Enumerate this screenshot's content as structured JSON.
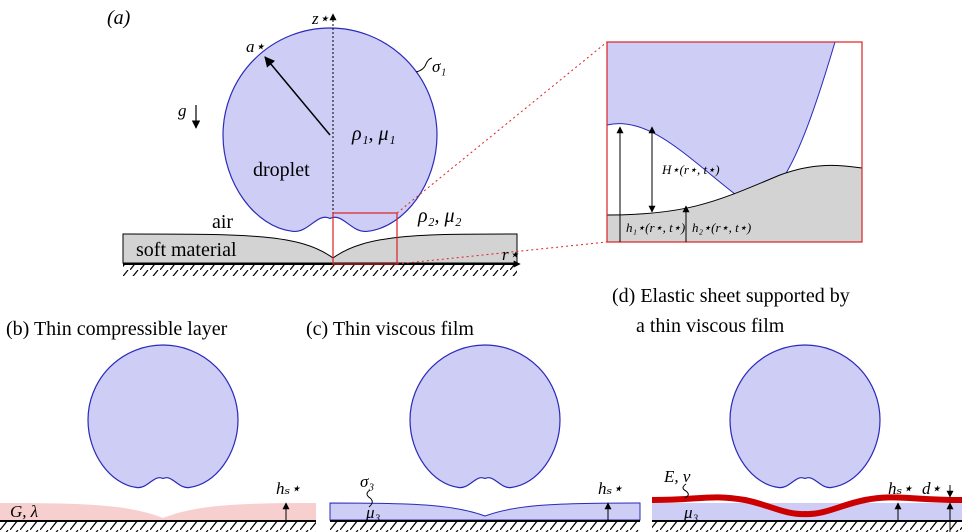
{
  "panel_a": {
    "label": "(a)",
    "axis_z": "z⋆",
    "radius": "a⋆",
    "sigma1": "σ₁",
    "gravity": "g",
    "fluid1": "ρ₁,  μ₁",
    "droplet": "droplet",
    "air": "air",
    "fluid2": "ρ₂,  μ₂",
    "soft_material": "soft material",
    "axis_r": "r⋆"
  },
  "inset": {
    "H": "H⋆(r⋆, t⋆)",
    "h1": "h₁⋆(r⋆, t⋆)",
    "h2": "h₂⋆(r⋆, t⋆)"
  },
  "panel_b": {
    "title": "(b) Thin compressible layer",
    "material": "G, λ",
    "thickness": "hₛ⋆"
  },
  "panel_c": {
    "title": "(c) Thin viscous film",
    "sigma3": "σ₃",
    "mu3": "μ₃",
    "thickness": "hₛ⋆"
  },
  "panel_d": {
    "title_line1": "(d) Elastic sheet supported by",
    "title_line2": "a thin viscous film",
    "modulus": "E, ν",
    "mu3": "μ₃",
    "thickness": "hₛ⋆",
    "d": "d⋆"
  }
}
